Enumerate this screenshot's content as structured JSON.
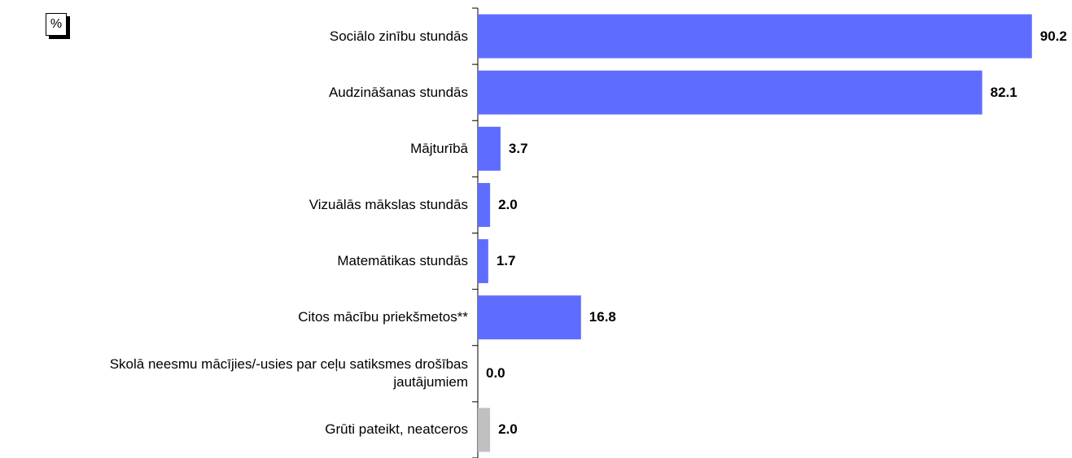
{
  "chart_data": {
    "type": "hbar",
    "unit_label": "%",
    "categories": [
      "Sociālo zinību stundās",
      "Audzināšanas stundās",
      "Mājturībā",
      "Vizuālās mākslas stundās",
      "Matemātikas stundās",
      "Citos mācību priekšmetos**",
      "Skolā neesmu mācījies/-usies par ceļu satiksmes drošības\njautājumiem",
      "Grūti pateikt, neatceros"
    ],
    "values": [
      90.2,
      82.1,
      3.7,
      2.0,
      1.7,
      16.8,
      0.0,
      2.0
    ],
    "value_labels": [
      "90.2",
      "82.1",
      "3.7",
      "2.0",
      "1.7",
      "16.8",
      "0.0",
      "2.0"
    ],
    "colors": [
      "#5f6dff",
      "#5f6dff",
      "#5f6dff",
      "#5f6dff",
      "#5f6dff",
      "#5f6dff",
      "#5f6dff",
      "#c0c0c0"
    ],
    "xlim": [
      0,
      95
    ]
  }
}
